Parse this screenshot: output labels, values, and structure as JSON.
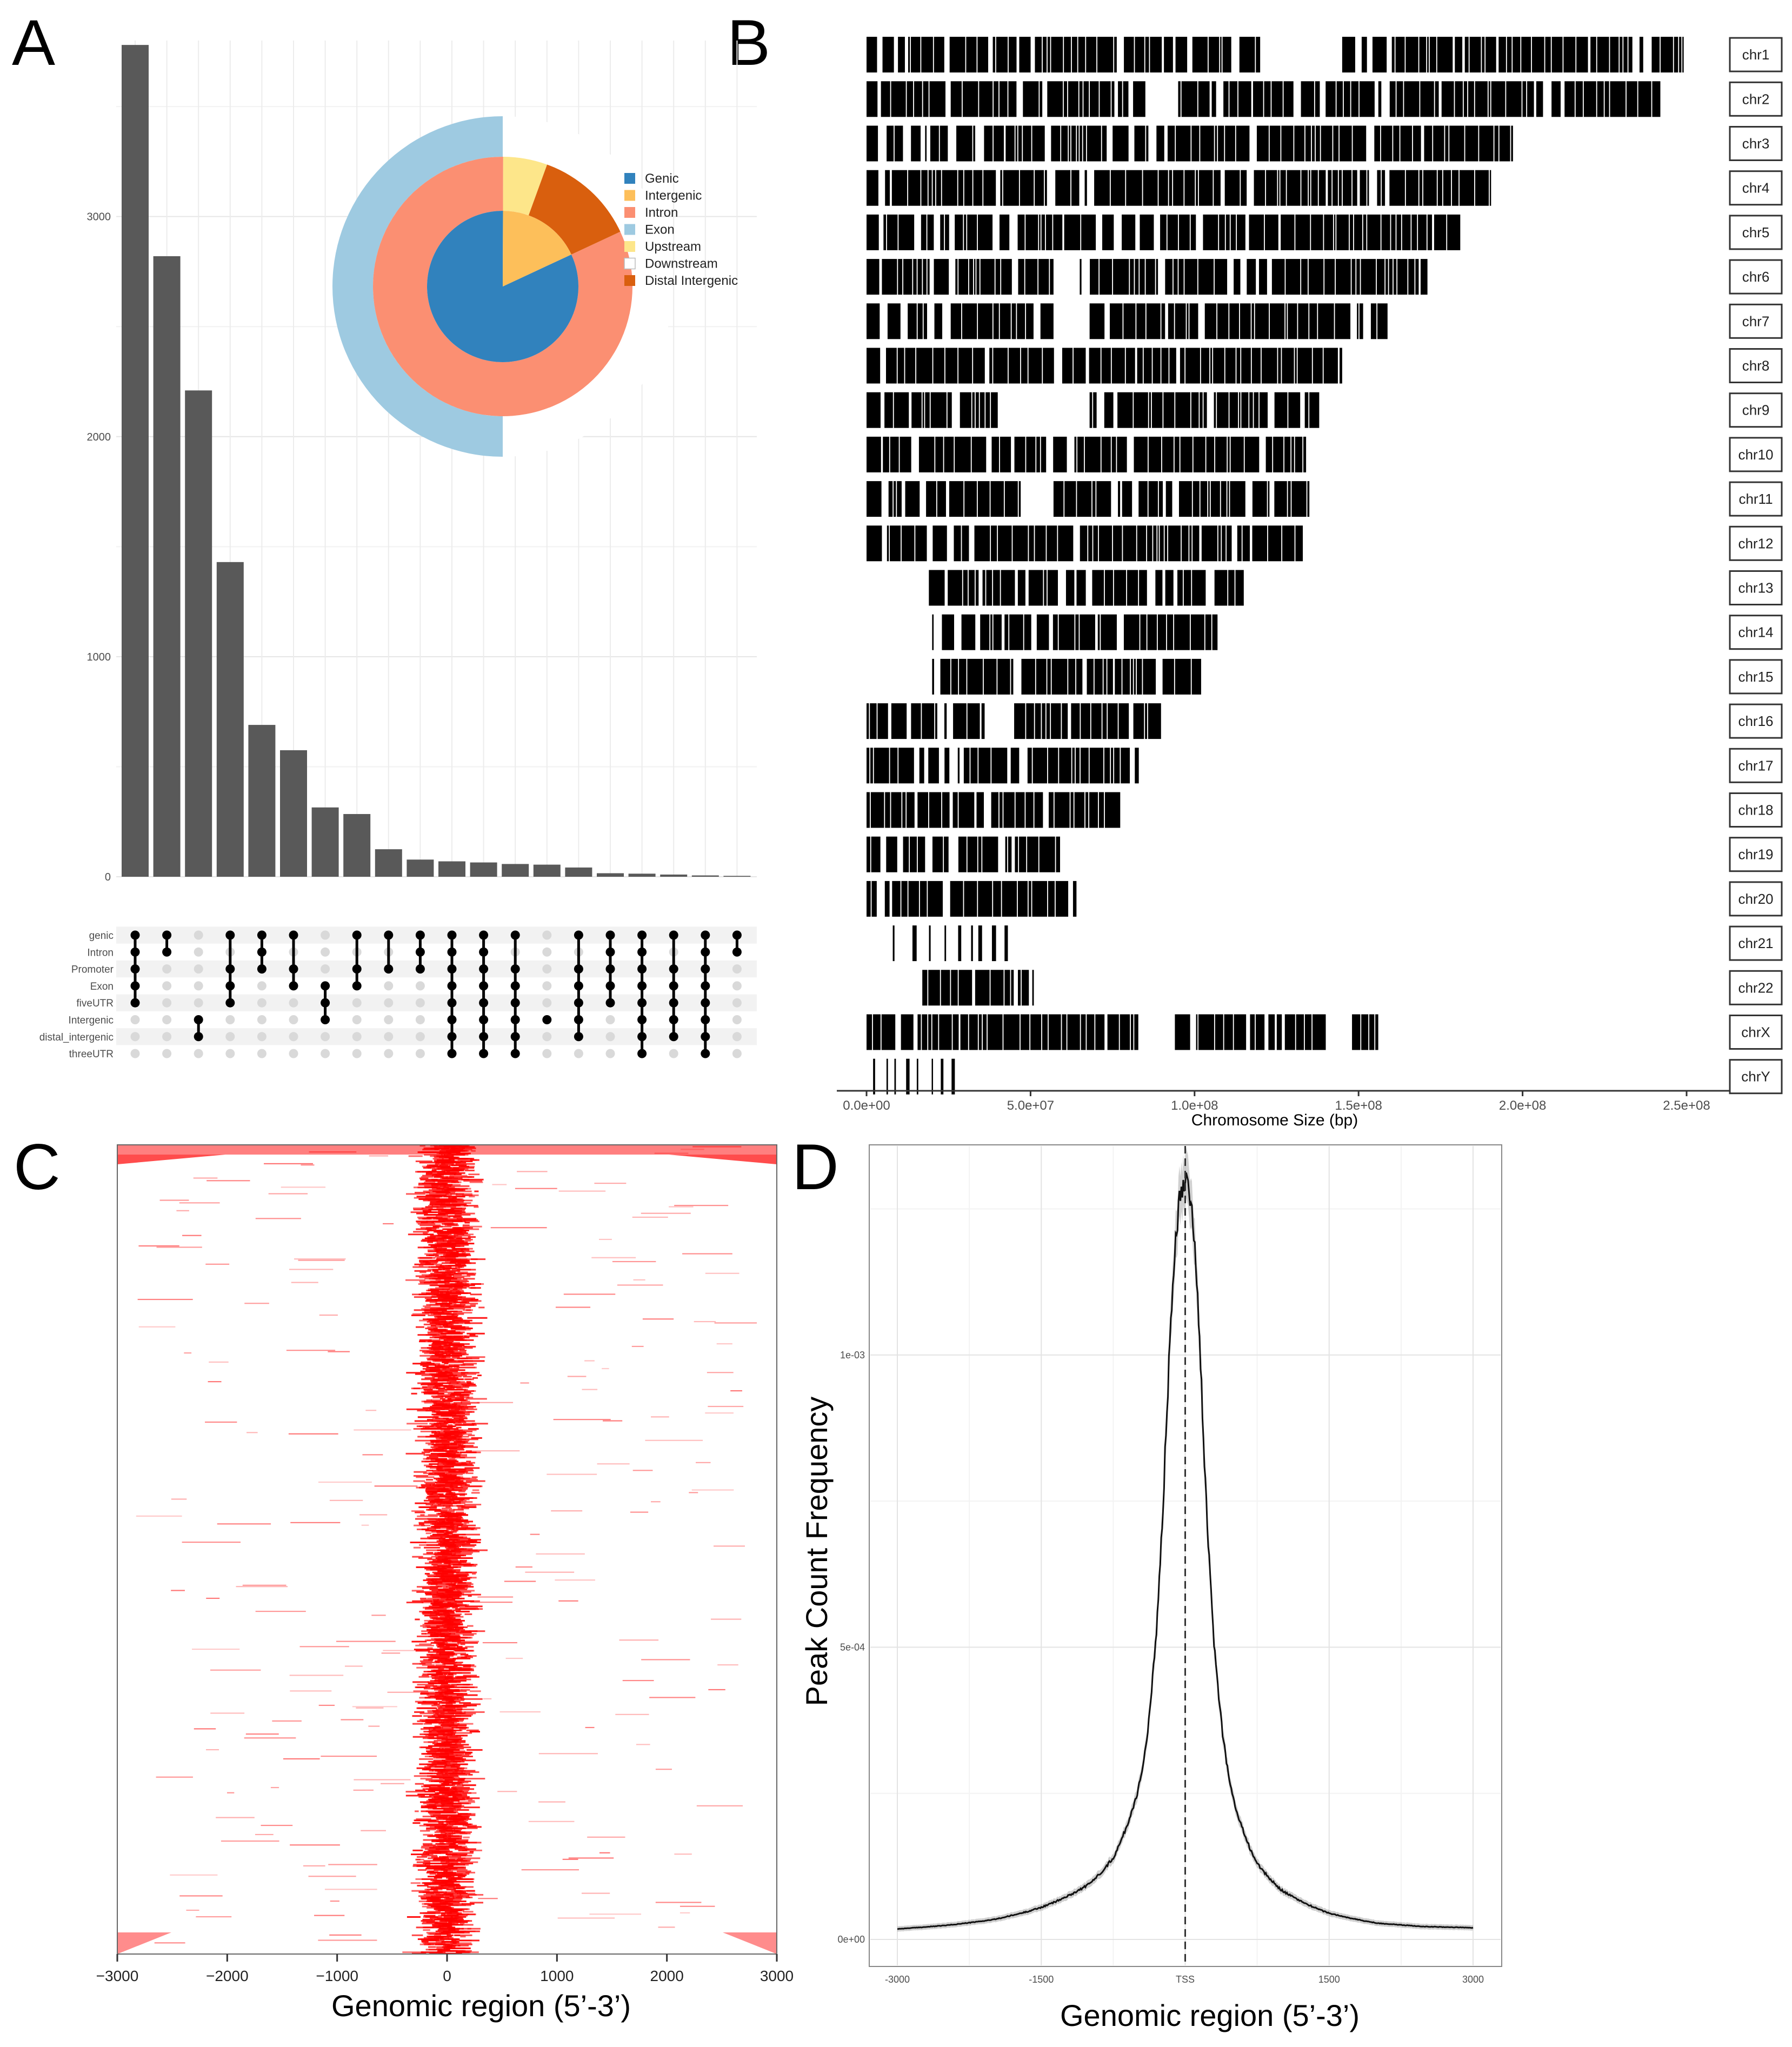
{
  "panels": {
    "a": {
      "letter": "A"
    },
    "b": {
      "letter": "B"
    },
    "c": {
      "letter": "C"
    },
    "d": {
      "letter": "D"
    }
  },
  "colors": {
    "bar": "#595959",
    "chrom_bar": "#000000",
    "heat": "#ff0000",
    "dot_on": "#000000",
    "dot_off": "#d9d9d9",
    "genic": "#3182bd",
    "intergenic": "#fdbf5a",
    "intron": "#fb8f72",
    "exon": "#9ecae1",
    "upstream": "#fde68a",
    "downstream": "#ffffff",
    "distal_intergenic": "#d95f0e"
  },
  "chart_data": [
    {
      "id": "upset",
      "type": "bar",
      "title": "",
      "xlabel": "",
      "ylabel": "",
      "ylim": [
        0,
        3800
      ],
      "yticks": [
        0,
        1000,
        2000,
        3000
      ],
      "grid": true,
      "values": [
        3780,
        2820,
        2210,
        1430,
        690,
        575,
        315,
        285,
        125,
        78,
        70,
        65,
        58,
        55,
        42,
        16,
        14,
        10,
        6,
        4
      ],
      "sets": [
        "genic",
        "Intron",
        "Promoter",
        "Exon",
        "fiveUTR",
        "Intergenic",
        "distal_intergenic",
        "threeUTR"
      ],
      "intersections": [
        [
          "genic",
          "Intron",
          "Promoter",
          "Exon",
          "fiveUTR"
        ],
        [
          "genic",
          "Intron"
        ],
        [
          "Intergenic",
          "distal_intergenic"
        ],
        [
          "genic",
          "Promoter",
          "Exon",
          "fiveUTR"
        ],
        [
          "genic",
          "Intron",
          "Promoter"
        ],
        [
          "genic",
          "Promoter",
          "Exon"
        ],
        [
          "Exon",
          "fiveUTR",
          "Intergenic"
        ],
        [
          "genic",
          "Promoter",
          "Exon"
        ],
        [
          "genic",
          "Promoter"
        ],
        [
          "genic",
          "Intron",
          "Promoter"
        ],
        [
          "genic",
          "Intron",
          "Promoter",
          "Exon",
          "fiveUTR",
          "Intergenic",
          "distal_intergenic",
          "threeUTR"
        ],
        [
          "genic",
          "Intron",
          "Promoter",
          "Exon",
          "fiveUTR",
          "Intergenic",
          "distal_intergenic",
          "threeUTR"
        ],
        [
          "genic",
          "Promoter",
          "Exon",
          "fiveUTR",
          "Intergenic",
          "distal_intergenic",
          "threeUTR"
        ],
        [
          "Intergenic"
        ],
        [
          "genic",
          "Promoter",
          "Exon",
          "fiveUTR",
          "Intergenic",
          "distal_intergenic"
        ],
        [
          "genic",
          "Intron",
          "Promoter",
          "Exon",
          "fiveUTR"
        ],
        [
          "genic",
          "Intron",
          "Promoter",
          "Exon",
          "fiveUTR",
          "Intergenic",
          "distal_intergenic",
          "threeUTR"
        ],
        [
          "genic",
          "Promoter",
          "Exon",
          "fiveUTR",
          "Intergenic",
          "distal_intergenic"
        ],
        [
          "genic",
          "Intron",
          "Promoter",
          "Exon",
          "fiveUTR",
          "Intergenic",
          "distal_intergenic",
          "threeUTR"
        ],
        [
          "genic",
          "Intron"
        ]
      ]
    },
    {
      "id": "donut",
      "type": "pie",
      "legend_position": "right",
      "legend": [
        "Genic",
        "Intergenic",
        "Intron",
        "Exon",
        "Upstream",
        "Downstream",
        "Distal Intergenic"
      ],
      "inner": [
        {
          "name": "Genic",
          "value": 0.82
        },
        {
          "name": "Intergenic",
          "value": 0.18
        }
      ],
      "middle": [
        {
          "name": "Intron",
          "value": 0.82
        },
        {
          "name": "Upstream",
          "value": 0.055
        },
        {
          "name": "Distal Intergenic",
          "value": 0.125
        }
      ],
      "outer": [
        {
          "name": "Exon",
          "value": 0.5
        },
        {
          "name": "Downstream",
          "value": 0.5
        }
      ]
    },
    {
      "id": "chromosome_coverage",
      "type": "bar",
      "xlabel": "Chromosome Size (bp)",
      "xlim": [
        0,
        250000000
      ],
      "xticks": [
        0,
        50000000,
        100000000,
        150000000,
        200000000,
        250000000
      ],
      "xtick_labels": [
        "0.0e+00",
        "5.0e+07",
        "1.0e+08",
        "1.5e+08",
        "2.0e+08",
        "2.5e+08"
      ],
      "chromosomes": [
        "chr1",
        "chr2",
        "chr3",
        "chr4",
        "chr5",
        "chr6",
        "chr7",
        "chr8",
        "chr9",
        "chr10",
        "chr11",
        "chr12",
        "chr13",
        "chr14",
        "chr15",
        "chr16",
        "chr17",
        "chr18",
        "chr19",
        "chr20",
        "chr21",
        "chr22",
        "chrX",
        "chrY"
      ],
      "extent": [
        [
          0,
          249000000
        ],
        [
          0,
          242000000
        ],
        [
          0,
          198000000
        ],
        [
          0,
          190000000
        ],
        [
          0,
          181000000
        ],
        [
          0,
          171000000
        ],
        [
          0,
          159000000
        ],
        [
          0,
          145000000
        ],
        [
          0,
          138000000
        ],
        [
          0,
          134000000
        ],
        [
          0,
          135000000
        ],
        [
          0,
          133000000
        ],
        [
          19000000,
          115000000
        ],
        [
          20000000,
          107000000
        ],
        [
          20000000,
          102000000
        ],
        [
          0,
          90000000
        ],
        [
          0,
          83000000
        ],
        [
          0,
          80000000
        ],
        [
          0,
          59000000
        ],
        [
          0,
          64000000
        ],
        [
          8000000,
          47000000
        ],
        [
          17000000,
          51000000
        ],
        [
          0,
          156000000
        ],
        [
          2000000,
          27000000
        ]
      ],
      "gaps": [
        [
          [
            120000000,
            145000000
          ]
        ],
        [
          [
            85000000,
            95000000
          ]
        ],
        [],
        [],
        [],
        [
          [
            57000000,
            65000000
          ]
        ],
        [
          [
            57000000,
            68000000
          ]
        ],
        [],
        [
          [
            40000000,
            68000000
          ]
        ],
        [],
        [
          [
            47000000,
            57000000
          ]
        ],
        [],
        [],
        [],
        [],
        [
          [
            36000000,
            45000000
          ]
        ],
        [],
        [],
        [
          [
            25000000,
            28000000
          ]
        ],
        [],
        [
          [
            11000000,
            14000000
          ]
        ],
        [],
        [
          [
            85000000,
            94000000
          ],
          [
            140000000,
            148000000
          ]
        ],
        []
      ]
    },
    {
      "id": "tss_heatmap",
      "type": "heatmap",
      "xlabel": "Genomic region (5’-3’)",
      "xlim": [
        -3000,
        3000
      ],
      "xticks": [
        -3000,
        -2000,
        -1000,
        0,
        1000,
        2000,
        3000
      ],
      "xtick_labels": [
        "−3000",
        "−2000",
        "−1000",
        "0",
        "1000",
        "2000",
        "3000"
      ]
    },
    {
      "id": "tss_profile",
      "type": "line",
      "xlabel": "Genomic region (5’-3’)",
      "ylabel": "Peak Count Frequency",
      "xlim": [
        -3000,
        3000
      ],
      "ylim": [
        0,
        0.00133
      ],
      "xticks": [
        -3000,
        -1500,
        0,
        1500,
        3000
      ],
      "xtick_labels": [
        "-3000",
        "-1500",
        "TSS",
        "1500",
        "3000"
      ],
      "yticks": [
        0,
        0.0005,
        0.001
      ],
      "ytick_labels": [
        "0e+00",
        "5e-04",
        "1e-03"
      ],
      "grid": true,
      "x": [
        -3000,
        -2500,
        -2000,
        -1500,
        -1000,
        -750,
        -500,
        -400,
        -300,
        -200,
        -150,
        -100,
        -50,
        0,
        50,
        100,
        150,
        200,
        300,
        400,
        500,
        750,
        1000,
        1500,
        2000,
        2500,
        3000
      ],
      "y": [
        1.8e-05,
        2.4e-05,
        3.4e-05,
        5.5e-05,
        9.5e-05,
        0.00014,
        0.00025,
        0.00034,
        0.00053,
        0.00087,
        0.00107,
        0.00121,
        0.00128,
        0.00131,
        0.00128,
        0.0012,
        0.00103,
        0.00082,
        0.00051,
        0.00034,
        0.00024,
        0.00013,
        8.5e-05,
        4.5e-05,
        2.8e-05,
        2.2e-05,
        2e-05
      ]
    }
  ]
}
